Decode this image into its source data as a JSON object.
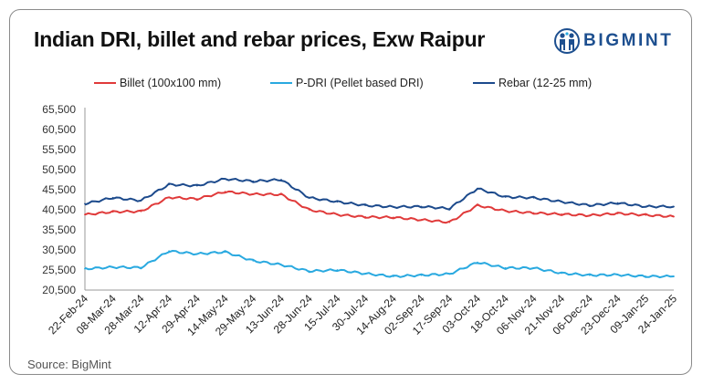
{
  "title": "Indian DRI, billet and rebar prices, Exw Raipur",
  "brand": {
    "name": "BIGMINT",
    "color": "#1d4f8f",
    "icon": "bigmint-people-icon"
  },
  "source": "Source: BigMint",
  "colors": {
    "billet": "#e03a3a",
    "pdri": "#29a9e0",
    "rebar": "#1c4a8c"
  },
  "chart_data": {
    "type": "line",
    "title": "Indian DRI, billet and rebar prices, Exw Raipur",
    "xlabel": "",
    "ylabel": "",
    "ylim": [
      20500,
      65500
    ],
    "yticks": [
      "65,500",
      "60,500",
      "55,500",
      "50,500",
      "45,500",
      "40,500",
      "35,500",
      "30,500",
      "25,500",
      "20,500"
    ],
    "ytick_values": [
      65500,
      60500,
      55500,
      50500,
      45500,
      40500,
      35500,
      30500,
      25500,
      20500
    ],
    "grid": false,
    "legend_position": "top",
    "categories": [
      "22-Feb-24",
      "08-Mar-24",
      "28-Mar-24",
      "12-Apr-24",
      "29-Apr-24",
      "14-May-24",
      "29-May-24",
      "13-Jun-24",
      "28-Jun-24",
      "15-Jul-24",
      "30-Jul-24",
      "14-Aug-24",
      "02-Sep-24",
      "17-Sep-24",
      "03-Oct-24",
      "18-Oct-24",
      "06-Nov-24",
      "21-Nov-24",
      "06-Dec-24",
      "23-Dec-24",
      "09-Jan-25",
      "24-Jan-25"
    ],
    "series": [
      {
        "name": "Billet (100x100 mm)",
        "key": "billet",
        "values": [
          39300,
          40000,
          40100,
          43600,
          43200,
          45000,
          44400,
          44300,
          40500,
          39300,
          38700,
          38600,
          38000,
          37400,
          41600,
          40200,
          39700,
          39400,
          39100,
          39600,
          39200,
          38800
        ]
      },
      {
        "name": "P-DRI (Pellet based DRI)",
        "key": "pdri",
        "values": [
          25800,
          26200,
          26100,
          30200,
          29500,
          30000,
          27800,
          26800,
          25200,
          25500,
          24600,
          23900,
          24200,
          24500,
          27400,
          26000,
          26000,
          24700,
          24200,
          24300,
          23900,
          23900
        ]
      },
      {
        "name": "Rebar (12-25 mm)",
        "key": "rebar",
        "values": [
          42000,
          43500,
          42800,
          46800,
          46500,
          48200,
          47600,
          48000,
          43500,
          42500,
          41600,
          41200,
          41300,
          40800,
          45800,
          43700,
          43500,
          42500,
          41600,
          42200,
          41300,
          41300
        ]
      }
    ]
  }
}
